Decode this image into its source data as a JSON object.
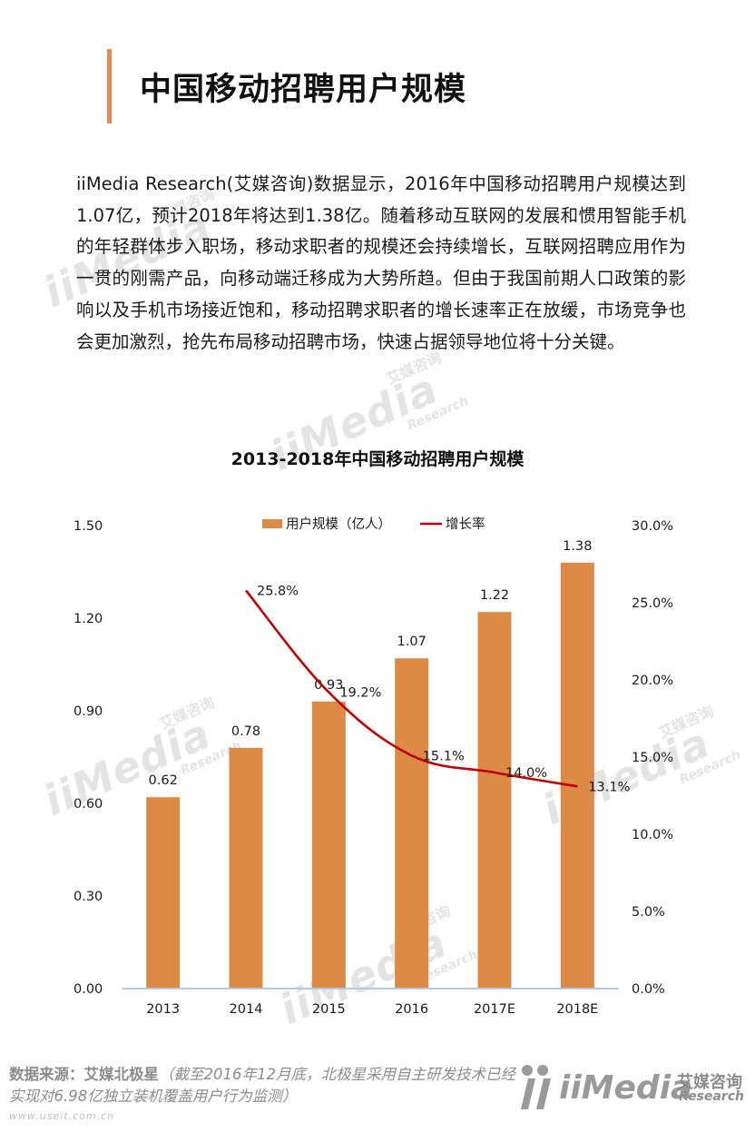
{
  "header": {
    "title": "中国移动招聘用户规模"
  },
  "intro": {
    "paragraph": "iiMedia Research(艾媒咨询)数据显示，2016年中国移动招聘用户规模达到1.07亿，预计2018年将达到1.38亿。随着移动互联网的发展和惯用智能手机的年轻群体步入职场，移动求职者的规模还会持续增长，互联网招聘应用作为一贯的刚需产品，向移动端迁移成为大势所趋。但由于我国前期人口政策的影响以及手机市场接近饱和，移动招聘求职者的增长速率正在放缓，市场竞争也会更加激烈，抢先布局移动招聘市场，快速占据领导地位将十分关键。"
  },
  "chart_data": {
    "type": "bar",
    "title": "2013-2018年中国移动招聘用户规模",
    "categories": [
      "2013",
      "2014",
      "2015",
      "2016",
      "2017E",
      "2018E"
    ],
    "series": [
      {
        "name": "用户规模（亿人）",
        "type": "bar",
        "axis": "left",
        "color": "#dd8a46",
        "values": [
          0.62,
          0.78,
          0.93,
          1.07,
          1.22,
          1.38
        ],
        "labels": [
          "0.62",
          "0.78",
          "0.93",
          "1.07",
          "1.22",
          "1.38"
        ]
      },
      {
        "name": "增长率",
        "type": "line",
        "axis": "right",
        "color": "#c00000",
        "values": [
          null,
          25.8,
          19.2,
          15.1,
          14.0,
          13.1
        ],
        "labels": [
          null,
          "25.8%",
          "19.2%",
          "15.1%",
          "14.0%",
          "13.1%"
        ]
      }
    ],
    "y_left": {
      "ylim": [
        0,
        1.5
      ],
      "ticks": [
        0,
        0.3,
        0.6,
        0.9,
        1.2,
        1.5
      ],
      "tick_labels": [
        "0.00",
        "0.30",
        "0.60",
        "0.90",
        "1.20",
        "1.50"
      ]
    },
    "y_right": {
      "ylim": [
        0,
        30
      ],
      "ticks": [
        0,
        5,
        10,
        15,
        20,
        25,
        30
      ],
      "tick_labels": [
        "0.0%",
        "5.0%",
        "10.0%",
        "15.0%",
        "20.0%",
        "25.0%",
        "30.0%"
      ]
    },
    "xlabel": "",
    "grid": false,
    "legend_position": "top-center",
    "axis_color": "#b4c7e7"
  },
  "footer": {
    "source_label": "数据来源：",
    "source_name": "艾媒北极星",
    "source_note": "（截至2016年12月底，北极星采用自主研发技术已经实现对6.98亿独立装机覆盖用户行为监测）",
    "url": "www.useit.com.cn"
  },
  "watermark": {
    "word": "iiMedia",
    "research": "Research",
    "cn": "艾媒咨询"
  },
  "logo": {
    "word": "iiMedia",
    "cn": "艾媒咨询",
    "en": "Research",
    "color": "#9a9a9a"
  }
}
